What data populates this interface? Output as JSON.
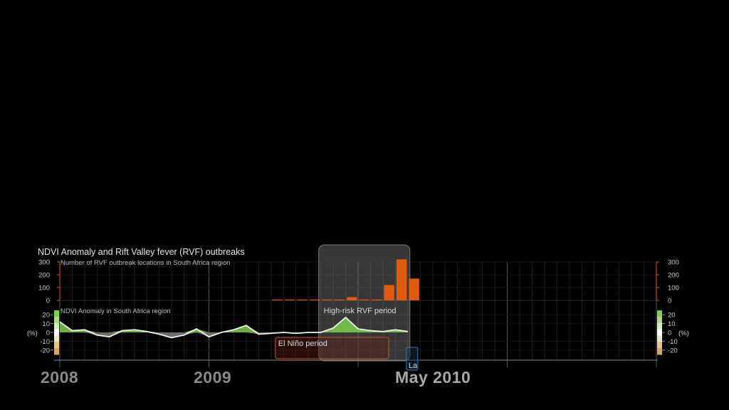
{
  "chart_data": {
    "type": "bar",
    "title": "NDVI Anomaly and Rift Valley fever (RVF) outbreaks",
    "bar_panel": {
      "label": "Number of RVF outbreak locations in South Africa region",
      "yticks": [
        300,
        200,
        100,
        0
      ],
      "ylim": [
        0,
        300
      ],
      "color": "#e05a10",
      "months": [
        "2009-06",
        "2009-07",
        "2009-08",
        "2009-09",
        "2009-10",
        "2009-11",
        "2009-12",
        "2010-01",
        "2010-02",
        "2010-03",
        "2010-04",
        "2010-05"
      ],
      "values": [
        3,
        3,
        5,
        2,
        0,
        0,
        25,
        0,
        0,
        120,
        320,
        170
      ]
    },
    "ndvi_panel": {
      "label": "NDVI Anomaly in South Africa region",
      "unit": "(%)",
      "yticks": [
        20,
        10,
        0,
        -10,
        -20
      ],
      "ylim": [
        -25,
        25
      ],
      "scale_colors": [
        "#7fcf4f",
        "#a9dc84",
        "#d4eec2",
        "#ffffff",
        "#f2e1c2",
        "#e6c38f",
        "#d9a760"
      ],
      "dates": [
        "2008-01",
        "2008-02",
        "2008-03",
        "2008-04",
        "2008-05",
        "2008-06",
        "2008-07",
        "2008-08",
        "2008-09",
        "2008-10",
        "2008-11",
        "2008-12",
        "2009-01",
        "2009-02",
        "2009-03",
        "2009-04",
        "2009-05",
        "2009-06",
        "2009-07",
        "2009-08",
        "2009-09",
        "2009-10",
        "2009-11",
        "2009-12",
        "2010-01",
        "2010-02",
        "2010-03",
        "2010-04",
        "2010-05"
      ],
      "values": [
        12,
        2,
        3,
        -3,
        -5,
        2,
        3,
        1,
        -2,
        -6,
        -3,
        4,
        -5,
        0,
        3,
        8,
        -2,
        -1,
        0,
        -1,
        0,
        0,
        5,
        17,
        4,
        2,
        1,
        3,
        1
      ]
    },
    "x_start": "2008-01",
    "x_end": "2011-12",
    "year_labels": [
      "2008",
      "2009",
      "May 2010"
    ],
    "periods": [
      {
        "label": "High-risk RVF period",
        "start": "2009-10",
        "end": "2010-05"
      },
      {
        "label": "El Niño period",
        "start": "2009-06",
        "end": "2010-03"
      },
      {
        "label": "La",
        "start": "2010-05",
        "end": "2010-06"
      }
    ]
  }
}
